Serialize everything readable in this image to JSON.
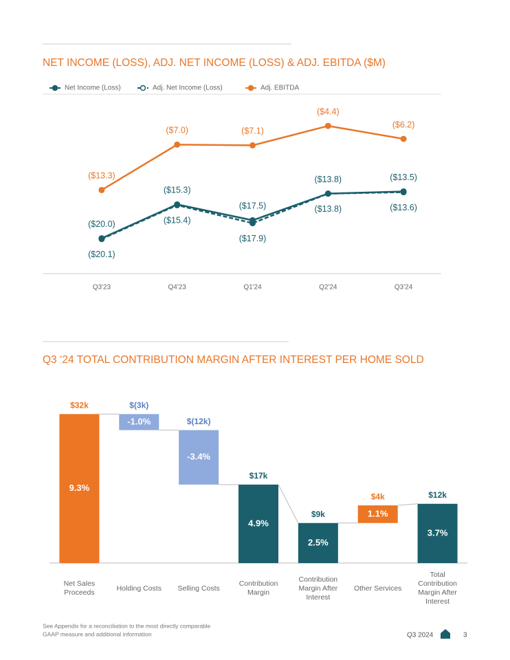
{
  "chart_data": [
    {
      "type": "line",
      "title": "NET INCOME (LOSS), ADJ. NET INCOME (LOSS) & ADJ. EBITDA ($M)",
      "categories": [
        "Q3'23",
        "Q4'23",
        "Q1'24",
        "Q2'24",
        "Q3'24"
      ],
      "series": [
        {
          "name": "Net Income (Loss)",
          "color": "#1b5f6c",
          "line_style": "solid",
          "label_position": "above",
          "values": [
            -20.0,
            -15.3,
            -17.5,
            -13.8,
            -13.5
          ],
          "value_labels": [
            "($20.0)",
            "($15.3)",
            "($17.5)",
            "($13.8)",
            "($13.5)"
          ]
        },
        {
          "name": "Adj. Net Income (Loss)",
          "color": "#1b5f6c",
          "line_style": "dashed",
          "label_position": "below",
          "values": [
            -20.1,
            -15.4,
            -17.9,
            -13.8,
            -13.6
          ],
          "value_labels": [
            "($20.1)",
            "($15.4)",
            "($17.9)",
            "($13.8)",
            "($13.6)"
          ]
        },
        {
          "name": "Adj. EBITDA",
          "color": "#e8772a",
          "line_style": "solid",
          "label_position": "above",
          "values": [
            -13.3,
            -7.0,
            -7.1,
            -4.4,
            -6.2
          ],
          "value_labels": [
            "($13.3)",
            "($7.0)",
            "($7.1)",
            "($4.4)",
            "($6.2)"
          ]
        }
      ],
      "ylim": [
        -25,
        0
      ]
    },
    {
      "type": "waterfall",
      "title": "Q3 ‘24 TOTAL CONTRIBUTION MARGIN AFTER INTEREST PER HOME SOLD",
      "categories": [
        "Net Sales Proceeds",
        "Holding Costs",
        "Selling Costs",
        "Contribution Margin",
        "Contribution Margin After Interest",
        "Other Services",
        "Total Contribution Margin After Interest"
      ],
      "values": [
        9.3,
        -1.0,
        -3.4,
        4.9,
        2.5,
        1.1,
        3.7
      ],
      "value_labels": [
        "9.3%",
        "-1.0%",
        "-3.4%",
        "4.9%",
        "2.5%",
        "1.1%",
        "3.7%"
      ],
      "amount_labels": [
        "$32k",
        "$(3k)",
        "$(12k)",
        "$17k",
        "$9k",
        "$4k",
        "$12k"
      ],
      "measures": [
        "absolute",
        "relative",
        "relative",
        "total",
        "absolute",
        "relative",
        "total"
      ],
      "colors": [
        "#ec7624",
        "#8faadc",
        "#8faadc",
        "#1b5f6c",
        "#1b5f6c",
        "#ec7624",
        "#1b5f6c"
      ],
      "label_colors": [
        "#ec7624",
        "#5b7fbf",
        "#5b7fbf",
        "#1b5f6c",
        "#1b5f6c",
        "#ec7624",
        "#1b5f6c"
      ],
      "ylim": [
        0,
        10
      ]
    }
  ],
  "footer": {
    "note": [
      "See Appendix for a reconciliation to the most directly comparable",
      "GAAP measure and additional information"
    ],
    "period": "Q3 2024",
    "page": 3
  }
}
